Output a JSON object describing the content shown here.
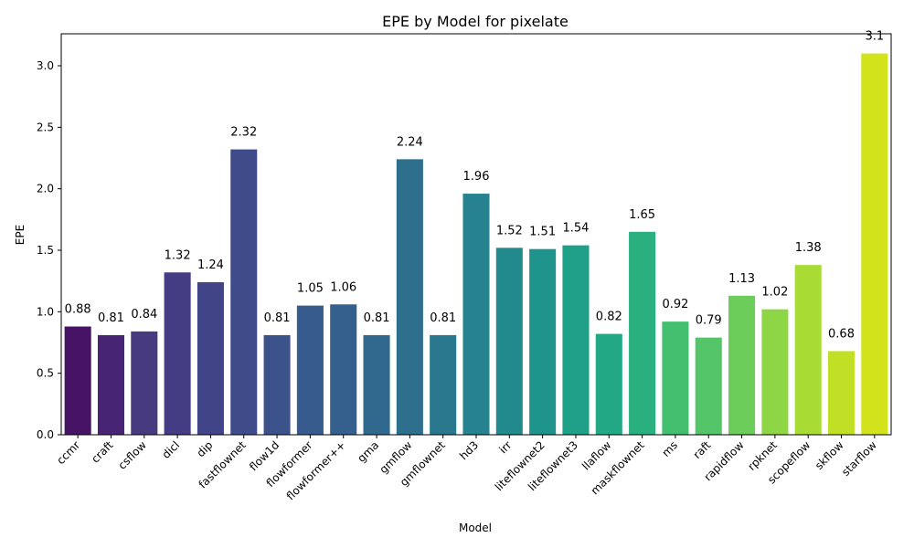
{
  "chart_data": {
    "type": "bar",
    "title": "EPE by Model for pixelate",
    "xlabel": "Model",
    "ylabel": "EPE",
    "ylim": [
      0,
      3.26
    ],
    "yticks": [
      0.0,
      0.5,
      1.0,
      1.5,
      2.0,
      2.5,
      3.0
    ],
    "ytick_labels": [
      "0.0",
      "0.5",
      "1.0",
      "1.5",
      "2.0",
      "2.5",
      "3.0"
    ],
    "categories": [
      "ccmr",
      "craft",
      "csflow",
      "dicl",
      "dip",
      "fastflownet",
      "flow1d",
      "flowformer",
      "flowformer++",
      "gma",
      "gmflow",
      "gmflownet",
      "hd3",
      "irr",
      "liteflownet2",
      "liteflownet3",
      "llaflow",
      "maskflownet",
      "ms",
      "raft",
      "rapidflow",
      "rpknet",
      "scopeflow",
      "skflow",
      "starflow"
    ],
    "values": [
      0.88,
      0.81,
      0.84,
      1.32,
      1.24,
      2.32,
      0.81,
      1.05,
      1.06,
      0.81,
      2.24,
      0.81,
      1.96,
      1.52,
      1.51,
      1.54,
      0.82,
      1.65,
      0.92,
      0.79,
      1.13,
      1.02,
      1.38,
      0.68,
      3.1
    ],
    "value_labels": [
      "0.88",
      "0.81",
      "0.84",
      "1.32",
      "1.24",
      "2.32",
      "0.81",
      "1.05",
      "1.06",
      "0.81",
      "2.24",
      "0.81",
      "1.96",
      "1.52",
      "1.51",
      "1.54",
      "0.82",
      "1.65",
      "0.92",
      "0.79",
      "1.13",
      "1.02",
      "1.38",
      "0.68",
      "3.1"
    ],
    "colors": [
      "#471365",
      "#482475",
      "#473a7f",
      "#443d84",
      "#414487",
      "#3f4c89",
      "#3b528b",
      "#375b8d",
      "#355f8d",
      "#31688e",
      "#2e6f8e",
      "#2a788e",
      "#26828e",
      "#228a8d",
      "#1f948c",
      "#1fa088",
      "#22a884",
      "#2ab07f",
      "#44bf70",
      "#54c568",
      "#6ccd5a",
      "#8ed645",
      "#a8db34",
      "#c0df25",
      "#d2e21b"
    ],
    "grid": false,
    "legend": "none"
  }
}
